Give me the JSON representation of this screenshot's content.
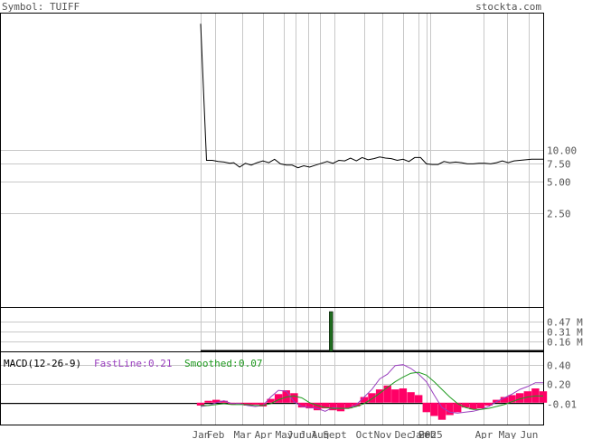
{
  "header": {
    "symbol_label": "Symbol: TUIFF",
    "site": "stockta.com"
  },
  "colors": {
    "grid": "#c8c8c8",
    "price_line": "#000000",
    "volume_bar": "#1f6b1f",
    "histogram": "#ff0066",
    "fastline": "#9a3fbf",
    "smoothed": "#1f9a1f",
    "text_gray": "#555555"
  },
  "chart_data": [
    {
      "type": "line",
      "name": "price",
      "y_ticks": [
        "10.00",
        "7.50",
        "5.00",
        "2.50"
      ],
      "y_tick_values": [
        10.0,
        7.5,
        5.0,
        2.5
      ],
      "scale": "log",
      "leading_segment": [
        {
          "x": 0,
          "y": 160
        },
        {
          "x": 3,
          "y": 8.0
        }
      ],
      "x": [
        3,
        6,
        9,
        12,
        15,
        17,
        20,
        23,
        26,
        29,
        32,
        35,
        38,
        41,
        44,
        47,
        50,
        53,
        56,
        59,
        62,
        65,
        68,
        71,
        74,
        77,
        80,
        83,
        86,
        89,
        92,
        95,
        98,
        101,
        104,
        107,
        110,
        113,
        116,
        119,
        122,
        125,
        128,
        131,
        134,
        137,
        140,
        143,
        146,
        149,
        152,
        155,
        158,
        161,
        164,
        167,
        170,
        173,
        176
      ],
      "values": [
        8.0,
        8.0,
        7.8,
        7.7,
        7.5,
        7.6,
        6.9,
        7.5,
        7.2,
        7.6,
        7.9,
        7.6,
        8.2,
        7.4,
        7.2,
        7.2,
        6.8,
        7.1,
        6.9,
        7.2,
        7.5,
        7.8,
        7.5,
        8.0,
        7.9,
        8.4,
        7.9,
        8.5,
        8.1,
        8.3,
        8.6,
        8.4,
        8.3,
        8.0,
        8.2,
        7.8,
        8.5,
        8.5,
        7.4,
        7.3,
        7.3,
        7.8,
        7.6,
        7.7,
        7.6,
        7.4,
        7.4,
        7.5,
        7.5,
        7.4,
        7.6,
        7.9,
        7.6,
        7.9,
        8.0,
        8.1,
        8.2,
        8.2,
        8.2
      ]
    },
    {
      "type": "bar",
      "name": "volume",
      "y_ticks": [
        "0.47 M",
        "0.31 M",
        "0.16 M"
      ],
      "y_tick_values": [
        0.47,
        0.31,
        0.16
      ],
      "ylim": [
        0,
        0.62
      ],
      "bars": [
        {
          "x": 67,
          "value": 0.62
        }
      ]
    },
    {
      "type": "line",
      "name": "macd",
      "title": "MACD(12-26-9)",
      "fastline_label": "FastLine:",
      "fastline_value": "0.21",
      "smoothed_label": "Smoothed:",
      "smoothed_value": "0.07",
      "y_ticks": [
        "0.40",
        "0.20",
        "-0.01"
      ],
      "y_tick_values": [
        0.4,
        0.2,
        -0.01
      ],
      "ylim": [
        -0.23,
        0.53
      ],
      "x": [
        0,
        4,
        8,
        12,
        16,
        20,
        24,
        28,
        32,
        36,
        40,
        44,
        48,
        52,
        56,
        60,
        64,
        68,
        72,
        76,
        80,
        84,
        88,
        92,
        96,
        100,
        104,
        108,
        112,
        116,
        120,
        124,
        128,
        132,
        136,
        140,
        144,
        148,
        152,
        156,
        160,
        164,
        168,
        172,
        176
      ],
      "histogram": [
        -0.03,
        0.02,
        0.03,
        0.02,
        -0.02,
        -0.01,
        -0.03,
        -0.02,
        -0.04,
        0.04,
        0.09,
        0.13,
        0.1,
        -0.05,
        -0.06,
        -0.08,
        -0.06,
        -0.08,
        -0.09,
        -0.06,
        -0.04,
        0.06,
        0.1,
        0.14,
        0.18,
        0.14,
        0.15,
        0.11,
        0.08,
        -0.1,
        -0.14,
        -0.18,
        -0.13,
        -0.1,
        -0.05,
        -0.07,
        -0.06,
        -0.03,
        0.03,
        0.06,
        0.08,
        0.1,
        0.12,
        0.15,
        0.12
      ],
      "fastline": [
        -0.04,
        -0.03,
        0.0,
        0.02,
        -0.01,
        -0.01,
        -0.03,
        -0.04,
        -0.03,
        0.06,
        0.13,
        0.12,
        0.01,
        -0.04,
        -0.05,
        -0.06,
        -0.09,
        -0.05,
        -0.06,
        -0.06,
        -0.02,
        0.06,
        0.14,
        0.25,
        0.3,
        0.39,
        0.4,
        0.36,
        0.3,
        0.22,
        0.08,
        -0.05,
        -0.1,
        -0.11,
        -0.1,
        -0.09,
        -0.07,
        -0.04,
        0.01,
        0.05,
        0.09,
        0.14,
        0.17,
        0.21,
        0.21
      ],
      "smoothed": [
        -0.03,
        -0.03,
        -0.02,
        -0.01,
        -0.02,
        -0.02,
        -0.02,
        -0.03,
        -0.03,
        -0.01,
        0.03,
        0.06,
        0.07,
        0.05,
        0.0,
        -0.03,
        -0.05,
        -0.06,
        -0.06,
        -0.06,
        -0.04,
        -0.01,
        0.04,
        0.1,
        0.16,
        0.22,
        0.27,
        0.31,
        0.32,
        0.29,
        0.22,
        0.14,
        0.06,
        -0.01,
        -0.05,
        -0.07,
        -0.07,
        -0.06,
        -0.04,
        -0.02,
        0.01,
        0.04,
        0.06,
        0.07,
        0.07
      ]
    }
  ],
  "x_axis": {
    "months": [
      {
        "label": "Jan",
        "x": 0
      },
      {
        "label": "Feb",
        "x": 5
      },
      {
        "label": "Mar",
        "x": 14
      },
      {
        "label": "Apr",
        "x": 21
      },
      {
        "label": "May",
        "x": 28
      },
      {
        "label": "Jun",
        "x": 32
      },
      {
        "label": "Jul",
        "x": 36
      },
      {
        "label": "Aug",
        "x": 40
      },
      {
        "label": "Sept",
        "x": 45
      },
      {
        "label": "Oct",
        "x": 55
      },
      {
        "label": "Nov",
        "x": 61
      },
      {
        "label": "Dec",
        "x": 68
      },
      {
        "label": "Jan",
        "x": 73
      },
      {
        "label": "Feb",
        "x": 76
      },
      {
        "label": "2025",
        "x": 77
      },
      {
        "label": "Apr",
        "x": 95
      },
      {
        "label": "May",
        "x": 103
      },
      {
        "label": "Jun",
        "x": 110
      }
    ]
  }
}
